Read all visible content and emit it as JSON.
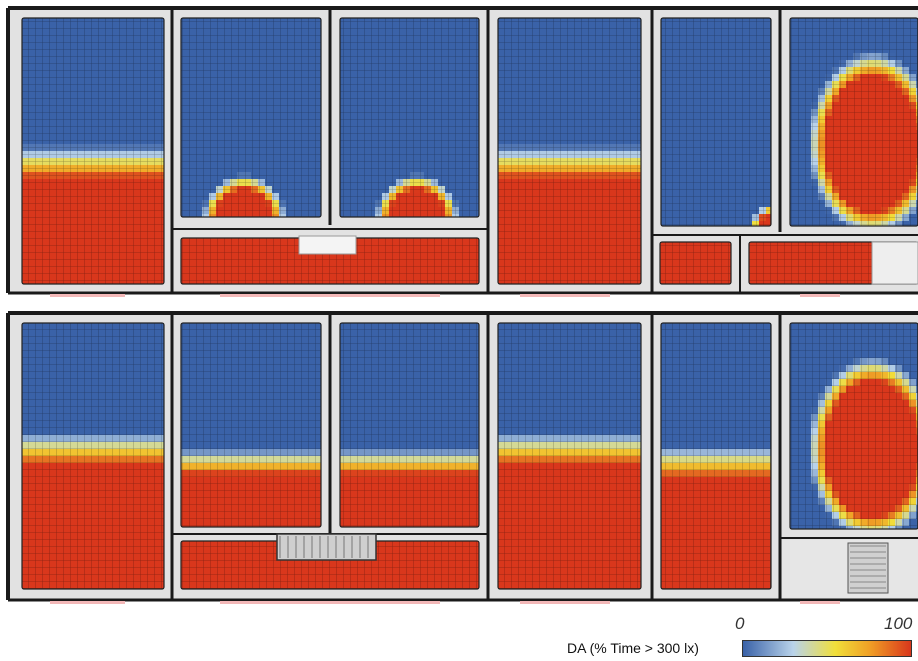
{
  "colors": {
    "low": "#3a62a8",
    "mid_low": "#b9d3ea",
    "mid": "#f1df3a",
    "mid_high": "#f0a126",
    "high": "#d9371c",
    "wall": "#1a1a1a",
    "slab": "#e2e2e2"
  },
  "legend": {
    "label": "DA (% Time > 300 lx)",
    "min_label": "0",
    "max_label": "100",
    "min_value": 0,
    "max_value": 100,
    "stops": [
      "#3a62a8",
      "#b9d3ea",
      "#f1df3a",
      "#f0a126",
      "#d9371c"
    ]
  },
  "floors": [
    {
      "rooms": [
        {
          "id": "1",
          "daylight_depth": 0.4,
          "shape": "band",
          "spread": 1.0
        },
        {
          "id": "2",
          "daylight_depth": 0.13,
          "shape": "dome-right",
          "spread": 0.55
        },
        {
          "id": "3",
          "daylight_depth": 0.13,
          "shape": "dome-left",
          "spread": 0.55
        },
        {
          "id": "4",
          "daylight_depth": 0.4,
          "shape": "band",
          "spread": 1.0
        },
        {
          "id": "5",
          "daylight_depth": 0.05,
          "shape": "corner",
          "spread": 0.2
        },
        {
          "id": "6",
          "daylight_depth": 0.75,
          "shape": "ellipse",
          "spread": 0.7
        },
        {
          "id": "7",
          "daylight_depth": 1.0,
          "shape": "full",
          "spread": 1.0
        },
        {
          "id": "8",
          "daylight_depth": 1.0,
          "shape": "full",
          "spread": 1.0
        },
        {
          "id": "9",
          "daylight_depth": 1.0,
          "shape": "full",
          "spread": 1.0
        }
      ]
    },
    {
      "rooms": [
        {
          "id": "1",
          "daylight_depth": 0.47,
          "shape": "band",
          "spread": 1.0
        },
        {
          "id": "2",
          "daylight_depth": 0.28,
          "shape": "band",
          "spread": 1.0
        },
        {
          "id": "3",
          "daylight_depth": 0.28,
          "shape": "band",
          "spread": 1.0
        },
        {
          "id": "4",
          "daylight_depth": 0.47,
          "shape": "band",
          "spread": 1.0
        },
        {
          "id": "5",
          "daylight_depth": 0.42,
          "shape": "band",
          "spread": 1.0
        },
        {
          "id": "6",
          "daylight_depth": 0.75,
          "shape": "ellipse",
          "spread": 0.7
        },
        {
          "id": "7",
          "daylight_depth": 1.0,
          "shape": "full",
          "spread": 1.0
        }
      ]
    }
  ]
}
